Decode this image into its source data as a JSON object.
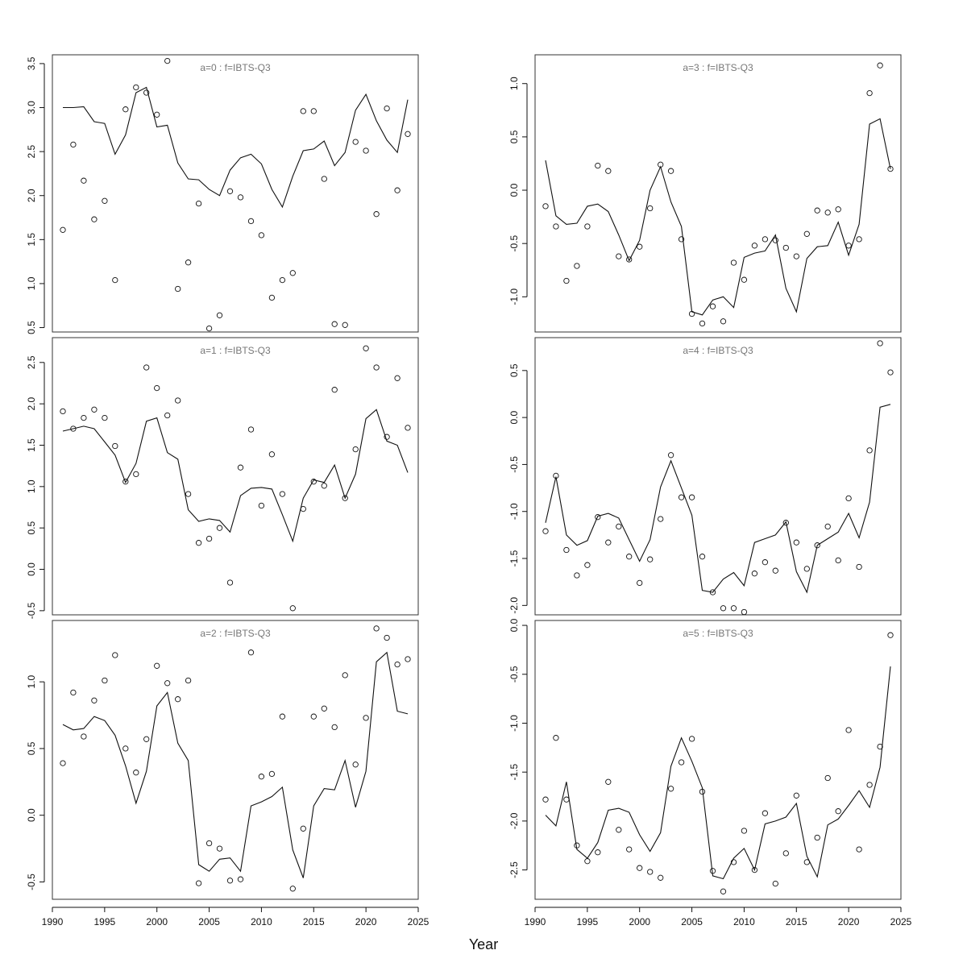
{
  "figure": {
    "xlabel": "Year"
  },
  "chart_data": [
    {
      "type": "scatter",
      "title": "a=0  :  f=IBTS-Q3",
      "xlabel": "",
      "ylabel": "",
      "xlim": [
        1990,
        2025
      ],
      "ylim": [
        0.45,
        3.6
      ],
      "yticks": [
        0.5,
        1.0,
        1.5,
        2.0,
        2.5,
        3.0,
        3.5
      ],
      "xticks": [],
      "x": [
        1991,
        1992,
        1993,
        1994,
        1995,
        1996,
        1997,
        1998,
        1999,
        2000,
        2001,
        2002,
        2003,
        2004,
        2005,
        2006,
        2007,
        2008,
        2009,
        2010,
        2011,
        2012,
        2013,
        2014,
        2015,
        2016,
        2017,
        2018,
        2019,
        2020,
        2021,
        2022,
        2023,
        2024
      ],
      "series": [
        {
          "kind": "line",
          "values": [
            3.0,
            3.0,
            3.01,
            2.84,
            2.82,
            2.47,
            2.69,
            3.17,
            3.23,
            2.78,
            2.8,
            2.37,
            2.19,
            2.18,
            2.07,
            2.0,
            2.29,
            2.43,
            2.47,
            2.36,
            2.07,
            1.87,
            2.22,
            2.51,
            2.53,
            2.62,
            2.34,
            2.49,
            2.97,
            3.15,
            2.85,
            2.63,
            2.49,
            3.09
          ]
        },
        {
          "kind": "points",
          "values": [
            1.61,
            2.58,
            2.17,
            1.73,
            1.94,
            1.04,
            2.98,
            3.23,
            3.17,
            2.92,
            3.53,
            0.94,
            1.24,
            1.91,
            0.49,
            0.64,
            2.05,
            1.98,
            1.71,
            1.55,
            0.84,
            1.04,
            1.12,
            2.96,
            2.96,
            2.19,
            0.54,
            0.53,
            2.61,
            2.51,
            1.79,
            2.99,
            2.06,
            2.7
          ]
        }
      ]
    },
    {
      "type": "scatter",
      "title": "a=3  :  f=IBTS-Q3",
      "xlabel": "",
      "ylabel": "",
      "xlim": [
        1990,
        2025
      ],
      "ylim": [
        -1.33,
        1.27
      ],
      "yticks": [
        -1.0,
        -0.5,
        0.0,
        0.5,
        1.0
      ],
      "xticks": [],
      "x": [
        1991,
        1992,
        1993,
        1994,
        1995,
        1996,
        1997,
        1998,
        1999,
        2000,
        2001,
        2002,
        2003,
        2004,
        2005,
        2006,
        2007,
        2008,
        2009,
        2010,
        2011,
        2012,
        2013,
        2014,
        2015,
        2016,
        2017,
        2018,
        2019,
        2020,
        2021,
        2022,
        2023,
        2024
      ],
      "series": [
        {
          "kind": "line",
          "values": [
            0.28,
            -0.24,
            -0.32,
            -0.31,
            -0.15,
            -0.13,
            -0.2,
            -0.42,
            -0.66,
            -0.47,
            0.0,
            0.22,
            -0.11,
            -0.34,
            -1.14,
            -1.17,
            -1.03,
            -1.0,
            -1.1,
            -0.63,
            -0.59,
            -0.57,
            -0.42,
            -0.92,
            -1.14,
            -0.64,
            -0.53,
            -0.52,
            -0.3,
            -0.61,
            -0.32,
            0.62,
            0.67,
            0.2
          ]
        },
        {
          "kind": "points",
          "values": [
            -0.15,
            -0.34,
            -0.85,
            -0.71,
            -0.34,
            0.23,
            0.18,
            -0.62,
            -0.65,
            -0.53,
            -0.17,
            0.24,
            0.18,
            -0.46,
            -1.16,
            -1.25,
            -1.09,
            -1.23,
            -0.68,
            -0.84,
            -0.52,
            -0.46,
            -0.47,
            -0.54,
            -0.62,
            -0.41,
            -0.19,
            -0.21,
            -0.18,
            -0.52,
            -0.46,
            0.91,
            1.17,
            0.2
          ]
        }
      ]
    },
    {
      "type": "scatter",
      "title": "a=1  :  f=IBTS-Q3",
      "xlabel": "",
      "ylabel": "",
      "xlim": [
        1990,
        2025
      ],
      "ylim": [
        -0.55,
        2.8
      ],
      "yticks": [
        -0.5,
        0.0,
        0.5,
        1.0,
        1.5,
        2.0,
        2.5
      ],
      "xticks": [],
      "x": [
        1991,
        1992,
        1993,
        1994,
        1995,
        1996,
        1997,
        1998,
        1999,
        2000,
        2001,
        2002,
        2003,
        2004,
        2005,
        2006,
        2007,
        2008,
        2009,
        2010,
        2011,
        2012,
        2013,
        2014,
        2015,
        2016,
        2017,
        2018,
        2019,
        2020,
        2021,
        2022,
        2023,
        2024
      ],
      "series": [
        {
          "kind": "line",
          "values": [
            1.67,
            1.7,
            1.73,
            1.7,
            1.54,
            1.38,
            1.05,
            1.28,
            1.79,
            1.83,
            1.41,
            1.33,
            0.72,
            0.58,
            0.61,
            0.59,
            0.45,
            0.89,
            0.98,
            0.99,
            0.97,
            0.66,
            0.34,
            0.86,
            1.08,
            1.05,
            1.26,
            0.86,
            1.15,
            1.82,
            1.93,
            1.55,
            1.5,
            1.17
          ]
        },
        {
          "kind": "points",
          "values": [
            1.91,
            1.7,
            1.83,
            1.93,
            1.83,
            1.49,
            1.06,
            1.15,
            2.44,
            2.19,
            1.86,
            2.04,
            0.91,
            0.32,
            0.37,
            0.5,
            -0.16,
            1.23,
            1.69,
            0.77,
            1.39,
            0.91,
            -0.47,
            0.73,
            1.06,
            1.01,
            2.17,
            0.86,
            1.45,
            2.67,
            2.44,
            1.6,
            2.31,
            1.71
          ]
        }
      ]
    },
    {
      "type": "scatter",
      "title": "a=4  :  f=IBTS-Q3",
      "xlabel": "",
      "ylabel": "",
      "xlim": [
        1990,
        2025
      ],
      "ylim": [
        -2.1,
        0.85
      ],
      "yticks": [
        -2.0,
        -1.5,
        -1.0,
        -0.5,
        0.0,
        0.5
      ],
      "xticks": [],
      "x": [
        1991,
        1992,
        1993,
        1994,
        1995,
        1996,
        1997,
        1998,
        1999,
        2000,
        2001,
        2002,
        2003,
        2004,
        2005,
        2006,
        2007,
        2008,
        2009,
        2010,
        2011,
        2012,
        2013,
        2014,
        2015,
        2016,
        2017,
        2018,
        2019,
        2020,
        2021,
        2022,
        2023,
        2024
      ],
      "series": [
        {
          "kind": "line",
          "values": [
            -1.12,
            -0.63,
            -1.25,
            -1.36,
            -1.31,
            -1.05,
            -1.02,
            -1.07,
            -1.3,
            -1.53,
            -1.3,
            -0.74,
            -0.46,
            -0.75,
            -1.04,
            -1.84,
            -1.86,
            -1.72,
            -1.65,
            -1.79,
            -1.33,
            -1.29,
            -1.25,
            -1.11,
            -1.64,
            -1.86,
            -1.36,
            -1.29,
            -1.22,
            -1.02,
            -1.28,
            -0.9,
            0.11,
            0.14
          ]
        },
        {
          "kind": "points",
          "values": [
            -1.21,
            -0.62,
            -1.41,
            -1.68,
            -1.57,
            -1.06,
            -1.33,
            -1.16,
            -1.48,
            -1.76,
            -1.51,
            -1.08,
            -0.4,
            -0.85,
            -0.85,
            -1.48,
            -1.86,
            -2.03,
            -2.03,
            -2.07,
            -1.66,
            -1.54,
            -1.63,
            -1.12,
            -1.33,
            -1.61,
            -1.36,
            -1.16,
            -1.52,
            -0.86,
            -1.59,
            -0.35,
            0.79,
            0.48
          ]
        }
      ]
    },
    {
      "type": "scatter",
      "title": "a=2  :  f=IBTS-Q3",
      "xlabel": "",
      "ylabel": "",
      "xlim": [
        1990,
        2025
      ],
      "ylim": [
        -0.63,
        1.46
      ],
      "yticks": [
        -0.5,
        0.0,
        0.5,
        1.0
      ],
      "xticks": [
        1990,
        1995,
        2000,
        2005,
        2010,
        2015,
        2020,
        2025
      ],
      "x": [
        1991,
        1992,
        1993,
        1994,
        1995,
        1996,
        1997,
        1998,
        1999,
        2000,
        2001,
        2002,
        2003,
        2004,
        2005,
        2006,
        2007,
        2008,
        2009,
        2010,
        2011,
        2012,
        2013,
        2014,
        2015,
        2016,
        2017,
        2018,
        2019,
        2020,
        2021,
        2022,
        2023,
        2024
      ],
      "series": [
        {
          "kind": "line",
          "values": [
            0.68,
            0.64,
            0.65,
            0.74,
            0.71,
            0.6,
            0.37,
            0.09,
            0.33,
            0.82,
            0.92,
            0.54,
            0.41,
            -0.37,
            -0.42,
            -0.33,
            -0.32,
            -0.42,
            0.07,
            0.1,
            0.14,
            0.21,
            -0.26,
            -0.47,
            0.07,
            0.2,
            0.19,
            0.41,
            0.06,
            0.33,
            1.15,
            1.22,
            0.78,
            0.76
          ]
        },
        {
          "kind": "points",
          "values": [
            0.39,
            0.92,
            0.59,
            0.86,
            1.01,
            1.2,
            0.5,
            0.32,
            0.57,
            1.12,
            0.99,
            0.87,
            1.01,
            -0.51,
            -0.21,
            -0.25,
            -0.49,
            -0.48,
            1.22,
            0.29,
            0.31,
            0.74,
            -0.55,
            -0.1,
            0.74,
            0.8,
            0.66,
            1.05,
            0.38,
            0.73,
            1.4,
            1.33,
            1.13,
            1.17
          ]
        }
      ]
    },
    {
      "type": "scatter",
      "title": "a=5  :  f=IBTS-Q3",
      "xlabel": "",
      "ylabel": "",
      "xlim": [
        1990,
        2025
      ],
      "ylim": [
        -2.8,
        0.05
      ],
      "yticks": [
        -2.5,
        -2.0,
        -1.5,
        -1.0,
        -0.5,
        0.0
      ],
      "xticks": [
        1990,
        1995,
        2000,
        2005,
        2010,
        2015,
        2020,
        2025
      ],
      "x": [
        1991,
        1992,
        1993,
        1994,
        1995,
        1996,
        1997,
        1998,
        1999,
        2000,
        2001,
        2002,
        2003,
        2004,
        2005,
        2006,
        2007,
        2008,
        2009,
        2010,
        2011,
        2012,
        2013,
        2014,
        2015,
        2016,
        2017,
        2018,
        2019,
        2020,
        2021,
        2022,
        2023,
        2024
      ],
      "series": [
        {
          "kind": "line",
          "values": [
            -1.94,
            -2.05,
            -1.6,
            -2.29,
            -2.38,
            -2.22,
            -1.89,
            -1.87,
            -1.91,
            -2.14,
            -2.31,
            -2.12,
            -1.44,
            -1.15,
            -1.39,
            -1.66,
            -2.56,
            -2.59,
            -2.38,
            -2.28,
            -2.5,
            -2.03,
            -2.0,
            -1.96,
            -1.82,
            -2.36,
            -2.57,
            -2.04,
            -1.98,
            -1.84,
            -1.69,
            -1.86,
            -1.45,
            -0.42
          ]
        },
        {
          "kind": "points",
          "values": [
            -1.78,
            -1.15,
            -1.78,
            -2.25,
            -2.41,
            -2.32,
            -1.6,
            -2.09,
            -2.29,
            -2.48,
            -2.52,
            -2.58,
            -1.67,
            -1.4,
            -1.16,
            -1.7,
            -2.51,
            -2.72,
            -2.42,
            -2.1,
            -2.5,
            -1.92,
            -2.64,
            -2.33,
            -1.74,
            -2.42,
            -2.17,
            -1.56,
            -1.9,
            -1.07,
            -2.29,
            -1.63,
            -1.24,
            -0.1
          ]
        }
      ]
    }
  ]
}
